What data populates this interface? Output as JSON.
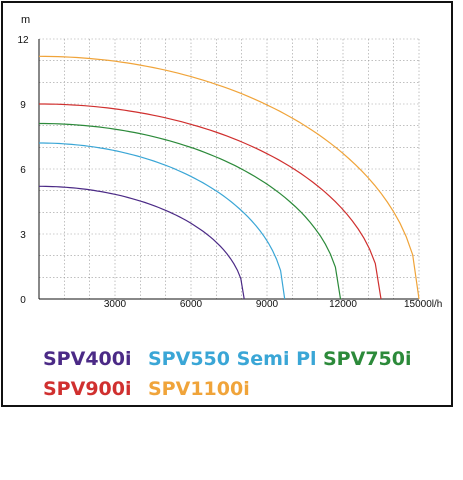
{
  "chart_data": {
    "type": "line",
    "y_unit": "m",
    "x_unit": "l/h",
    "xlim": [
      0,
      15000
    ],
    "ylim": [
      0,
      12
    ],
    "x_ticks": [
      "0",
      "3000",
      "6000",
      "9000",
      "12000",
      "15000"
    ],
    "y_ticks": [
      "0",
      "3",
      "6",
      "9",
      "12"
    ],
    "grid": true,
    "legend_position": "bottom",
    "series": [
      {
        "name": "SPV400i",
        "color": "#4b2a86",
        "shutoff_head": 5.2,
        "max_flow": 8100
      },
      {
        "name": "SPV550 Semi Pl",
        "color": "#3aa6d6",
        "shutoff_head": 7.2,
        "max_flow": 9700
      },
      {
        "name": "SPV750i",
        "color": "#2c8a3a",
        "shutoff_head": 8.1,
        "max_flow": 11900
      },
      {
        "name": "SPV900i",
        "color": "#d0302f",
        "shutoff_head": 9.0,
        "max_flow": 13500
      },
      {
        "name": "SPV1100i",
        "color": "#f0a43a",
        "shutoff_head": 11.2,
        "max_flow": 15000
      }
    ]
  }
}
